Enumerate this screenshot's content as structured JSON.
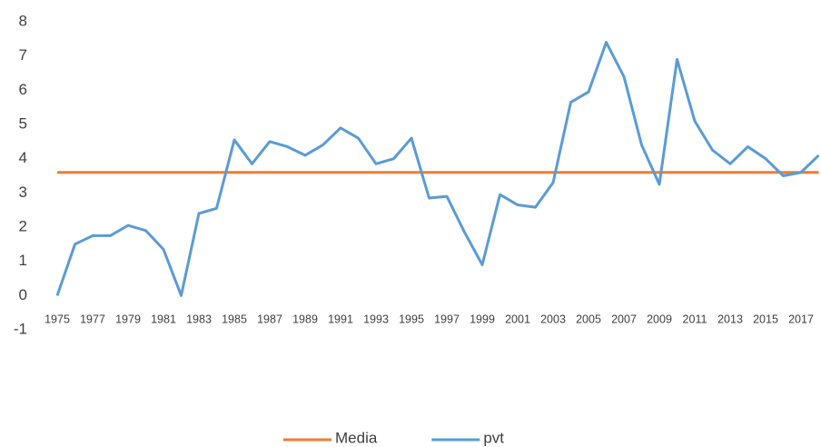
{
  "chart_data": {
    "type": "line",
    "categories": [
      "1975",
      null,
      "1977",
      null,
      "1979",
      null,
      "1981",
      null,
      "1983",
      null,
      "1985",
      null,
      "1987",
      null,
      "1989",
      null,
      "1991",
      null,
      "1993",
      null,
      "1995",
      null,
      "1997",
      null,
      "1999",
      null,
      "2001",
      null,
      "2003",
      null,
      "2005",
      null,
      "2007",
      null,
      "2009",
      null,
      "2011",
      null,
      "2013",
      null,
      "2015",
      null,
      "2017",
      null
    ],
    "series": [
      {
        "name": "Media",
        "color": "#ed7d31",
        "values": [
          3.6,
          3.6,
          3.6,
          3.6,
          3.6,
          3.6,
          3.6,
          3.6,
          3.6,
          3.6,
          3.6,
          3.6,
          3.6,
          3.6,
          3.6,
          3.6,
          3.6,
          3.6,
          3.6,
          3.6,
          3.6,
          3.6,
          3.6,
          3.6,
          3.6,
          3.6,
          3.6,
          3.6,
          3.6,
          3.6,
          3.6,
          3.6,
          3.6,
          3.6,
          3.6,
          3.6,
          3.6,
          3.6,
          3.6,
          3.6,
          3.6,
          3.6,
          3.6,
          3.6
        ]
      },
      {
        "name": "pvt",
        "color": "#5b9bd5",
        "values": [
          0,
          1.5,
          1.75,
          1.75,
          2.05,
          1.9,
          1.35,
          0,
          2.4,
          2.55,
          4.55,
          3.85,
          4.5,
          4.35,
          4.1,
          4.4,
          4.9,
          4.6,
          3.85,
          4.0,
          4.6,
          2.85,
          2.9,
          1.85,
          0.9,
          2.95,
          2.65,
          2.58,
          3.3,
          5.65,
          5.95,
          7.4,
          6.4,
          4.4,
          3.25,
          6.9,
          5.1,
          4.25,
          3.85,
          4.35,
          4.0,
          3.5,
          3.6,
          4.1
        ]
      }
    ],
    "ylim": [
      -1,
      8
    ],
    "yticks": [
      -1,
      0,
      1,
      2,
      3,
      4,
      5,
      6,
      7,
      8
    ],
    "grid": false,
    "legend": "bottom"
  }
}
